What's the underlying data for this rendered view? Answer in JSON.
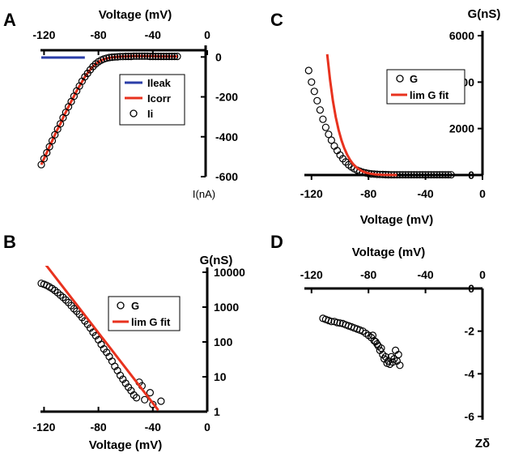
{
  "chart_data": [
    {
      "panel": "A",
      "type": "scatter",
      "xlabel": "Voltage (mV)",
      "ylabel": "I(nA)",
      "xlim": [
        -125,
        0
      ],
      "ylim": [
        -600,
        50
      ],
      "x_ticks": [
        "-120",
        "-80",
        "-40",
        "0"
      ],
      "y_ticks": [
        "0",
        "-200",
        "-400",
        "-600"
      ],
      "legend": [
        "Ileak",
        "Icorr",
        "Ii"
      ],
      "legend_position": "center-right",
      "series": [
        {
          "name": "Ileak",
          "kind": "line",
          "color": "#2b3ea8",
          "x": [
            -122,
            -90
          ],
          "y": [
            -3,
            -3
          ]
        },
        {
          "name": "Icorr",
          "kind": "line",
          "color": "#e8321e",
          "x": [
            -122,
            -120,
            -117,
            -114,
            -111,
            -108,
            -105,
            -102,
            -99,
            -96,
            -93,
            -90,
            -87,
            -84,
            -81,
            -78,
            -75,
            -72,
            -69,
            -66,
            -63,
            -60,
            -55,
            -50,
            -45,
            -40,
            -35,
            -30,
            -25,
            -22
          ],
          "y": [
            -540,
            -510,
            -465,
            -420,
            -375,
            -335,
            -290,
            -250,
            -210,
            -170,
            -135,
            -100,
            -72,
            -48,
            -30,
            -17,
            -9,
            -4,
            -1,
            1,
            2,
            3,
            4,
            4,
            4,
            4,
            3,
            3,
            3,
            3
          ]
        },
        {
          "name": "Ii",
          "kind": "markers",
          "color": "#000000",
          "x": [
            -122,
            -120,
            -118,
            -116,
            -114,
            -112,
            -110,
            -108,
            -106,
            -104,
            -102,
            -100,
            -98,
            -96,
            -94,
            -92,
            -90,
            -88,
            -86,
            -84,
            -82,
            -80,
            -78,
            -76,
            -74,
            -72,
            -70,
            -68,
            -66,
            -64,
            -62,
            -60,
            -58,
            -56,
            -54,
            -52,
            -50,
            -48,
            -46,
            -44,
            -42,
            -40,
            -38,
            -36,
            -34,
            -32,
            -30,
            -28,
            -26,
            -24,
            -22
          ],
          "y": [
            -540,
            -510,
            -480,
            -450,
            -420,
            -390,
            -362,
            -335,
            -305,
            -278,
            -250,
            -224,
            -197,
            -170,
            -146,
            -122,
            -100,
            -82,
            -64,
            -48,
            -35,
            -24,
            -16,
            -10,
            -6,
            -3,
            -1,
            0,
            1,
            2,
            2,
            3,
            3,
            3,
            4,
            4,
            4,
            4,
            4,
            4,
            3,
            3,
            3,
            3,
            3,
            3,
            3,
            3,
            3,
            3,
            3
          ]
        }
      ]
    },
    {
      "panel": "B",
      "type": "scatter",
      "xlabel": "Voltage (mV)",
      "ylabel": "G(nS)",
      "yscale": "log",
      "xlim": [
        -125,
        0
      ],
      "ylim": [
        1,
        10000
      ],
      "x_ticks": [
        "-120",
        "-80",
        "-40",
        "0"
      ],
      "y_ticks": [
        "10000",
        "1000",
        "100",
        "10",
        "1"
      ],
      "legend": [
        "G",
        "lim G fit"
      ],
      "legend_position": "center-right",
      "series": [
        {
          "name": "G",
          "kind": "markers",
          "color": "#000000",
          "x": [
            -122,
            -120,
            -118,
            -116,
            -114,
            -112,
            -110,
            -108,
            -106,
            -104,
            -102,
            -100,
            -98,
            -96,
            -94,
            -92,
            -90,
            -88,
            -86,
            -84,
            -82,
            -80,
            -78,
            -76,
            -74,
            -72,
            -70,
            -68,
            -66,
            -64,
            -62,
            -60,
            -58,
            -56,
            -54,
            -52,
            -50,
            -48,
            -46,
            -42,
            -40,
            -34
          ],
          "y": [
            4800,
            4500,
            4200,
            3800,
            3400,
            3000,
            2600,
            2200,
            1900,
            1600,
            1350,
            1100,
            900,
            760,
            620,
            500,
            400,
            320,
            250,
            190,
            150,
            115,
            85,
            63,
            50,
            38,
            28,
            20,
            15,
            11,
            8.5,
            6.5,
            5,
            4,
            3,
            2.5,
            7,
            5.5,
            2.2,
            3.5,
            1.6,
            2
          ]
        },
        {
          "name": "lim G fit",
          "kind": "line",
          "color": "#e8321e",
          "x": [
            -123,
            -36
          ],
          "y": [
            27000,
            1.1
          ]
        }
      ]
    },
    {
      "panel": "C",
      "type": "scatter",
      "xlabel": "Voltage (mV)",
      "ylabel": "G(nS)",
      "xlim": [
        -125,
        0
      ],
      "ylim": [
        0,
        6000
      ],
      "x_ticks": [
        "-120",
        "-80",
        "-40",
        "0"
      ],
      "y_ticks": [
        "6000",
        "4000",
        "2000",
        "0"
      ],
      "legend": [
        "G",
        "lim G fit"
      ],
      "legend_position": "top-right",
      "series": [
        {
          "name": "G",
          "kind": "markers",
          "color": "#000000",
          "x": [
            -122,
            -120,
            -118,
            -116,
            -114,
            -112,
            -110,
            -108,
            -106,
            -104,
            -102,
            -100,
            -98,
            -96,
            -94,
            -92,
            -90,
            -88,
            -86,
            -84,
            -82,
            -80,
            -78,
            -76,
            -74,
            -72,
            -70,
            -68,
            -66,
            -64,
            -62,
            -60,
            -58,
            -56,
            -54,
            -52,
            -50,
            -48,
            -46,
            -44,
            -42,
            -40,
            -38,
            -36,
            -34,
            -32,
            -30,
            -28,
            -26,
            -24,
            -22
          ],
          "y": [
            4500,
            4000,
            3600,
            3200,
            2800,
            2400,
            2050,
            1750,
            1500,
            1250,
            1050,
            860,
            700,
            560,
            440,
            350,
            270,
            210,
            160,
            120,
            90,
            65,
            50,
            40,
            30,
            25,
            20,
            18,
            15,
            12,
            10,
            10,
            10,
            10,
            10,
            10,
            10,
            10,
            10,
            10,
            10,
            10,
            10,
            10,
            10,
            10,
            10,
            10,
            10,
            10,
            10
          ]
        },
        {
          "name": "lim G fit",
          "kind": "line",
          "color": "#e8321e",
          "x": [
            -109,
            -107,
            -105,
            -103,
            -101,
            -99,
            -97,
            -95,
            -93,
            -91,
            -89,
            -87,
            -85,
            -83,
            -81,
            -79,
            -77,
            -75,
            -70,
            -65,
            -60
          ],
          "y": [
            5200,
            4100,
            3200,
            2500,
            1950,
            1500,
            1150,
            880,
            660,
            490,
            360,
            260,
            185,
            130,
            90,
            62,
            42,
            28,
            10,
            4,
            1
          ]
        }
      ]
    },
    {
      "panel": "D",
      "type": "scatter",
      "xlabel": "Voltage (mV)",
      "ylabel": "Zδ",
      "xlim": [
        -125,
        0
      ],
      "ylim": [
        -6,
        0
      ],
      "x_ticks": [
        "-120",
        "-80",
        "-40",
        "0"
      ],
      "y_ticks": [
        "0",
        "-2",
        "-4",
        "-6"
      ],
      "series": [
        {
          "name": "",
          "kind": "markers",
          "color": "#000000",
          "x": [
            -112,
            -110,
            -108,
            -106,
            -104,
            -102,
            -100,
            -98,
            -96,
            -94,
            -92,
            -90,
            -88,
            -86,
            -84,
            -82,
            -80,
            -78,
            -77,
            -76,
            -75,
            -74,
            -73,
            -72,
            -71,
            -70,
            -69,
            -68,
            -67,
            -66,
            -65,
            -64,
            -63,
            -62,
            -61,
            -60,
            -59,
            -58
          ],
          "y": [
            -1.4,
            -1.45,
            -1.5,
            -1.55,
            -1.55,
            -1.6,
            -1.62,
            -1.65,
            -1.7,
            -1.75,
            -1.8,
            -1.85,
            -1.9,
            -1.95,
            -2.0,
            -2.1,
            -2.2,
            -2.3,
            -2.2,
            -2.45,
            -2.5,
            -2.6,
            -2.7,
            -2.9,
            -2.8,
            -3.1,
            -3.3,
            -3.2,
            -3.5,
            -3.4,
            -3.55,
            -3.2,
            -3.45,
            -3.3,
            -2.9,
            -3.4,
            -3.1,
            -3.6
          ]
        }
      ]
    }
  ]
}
